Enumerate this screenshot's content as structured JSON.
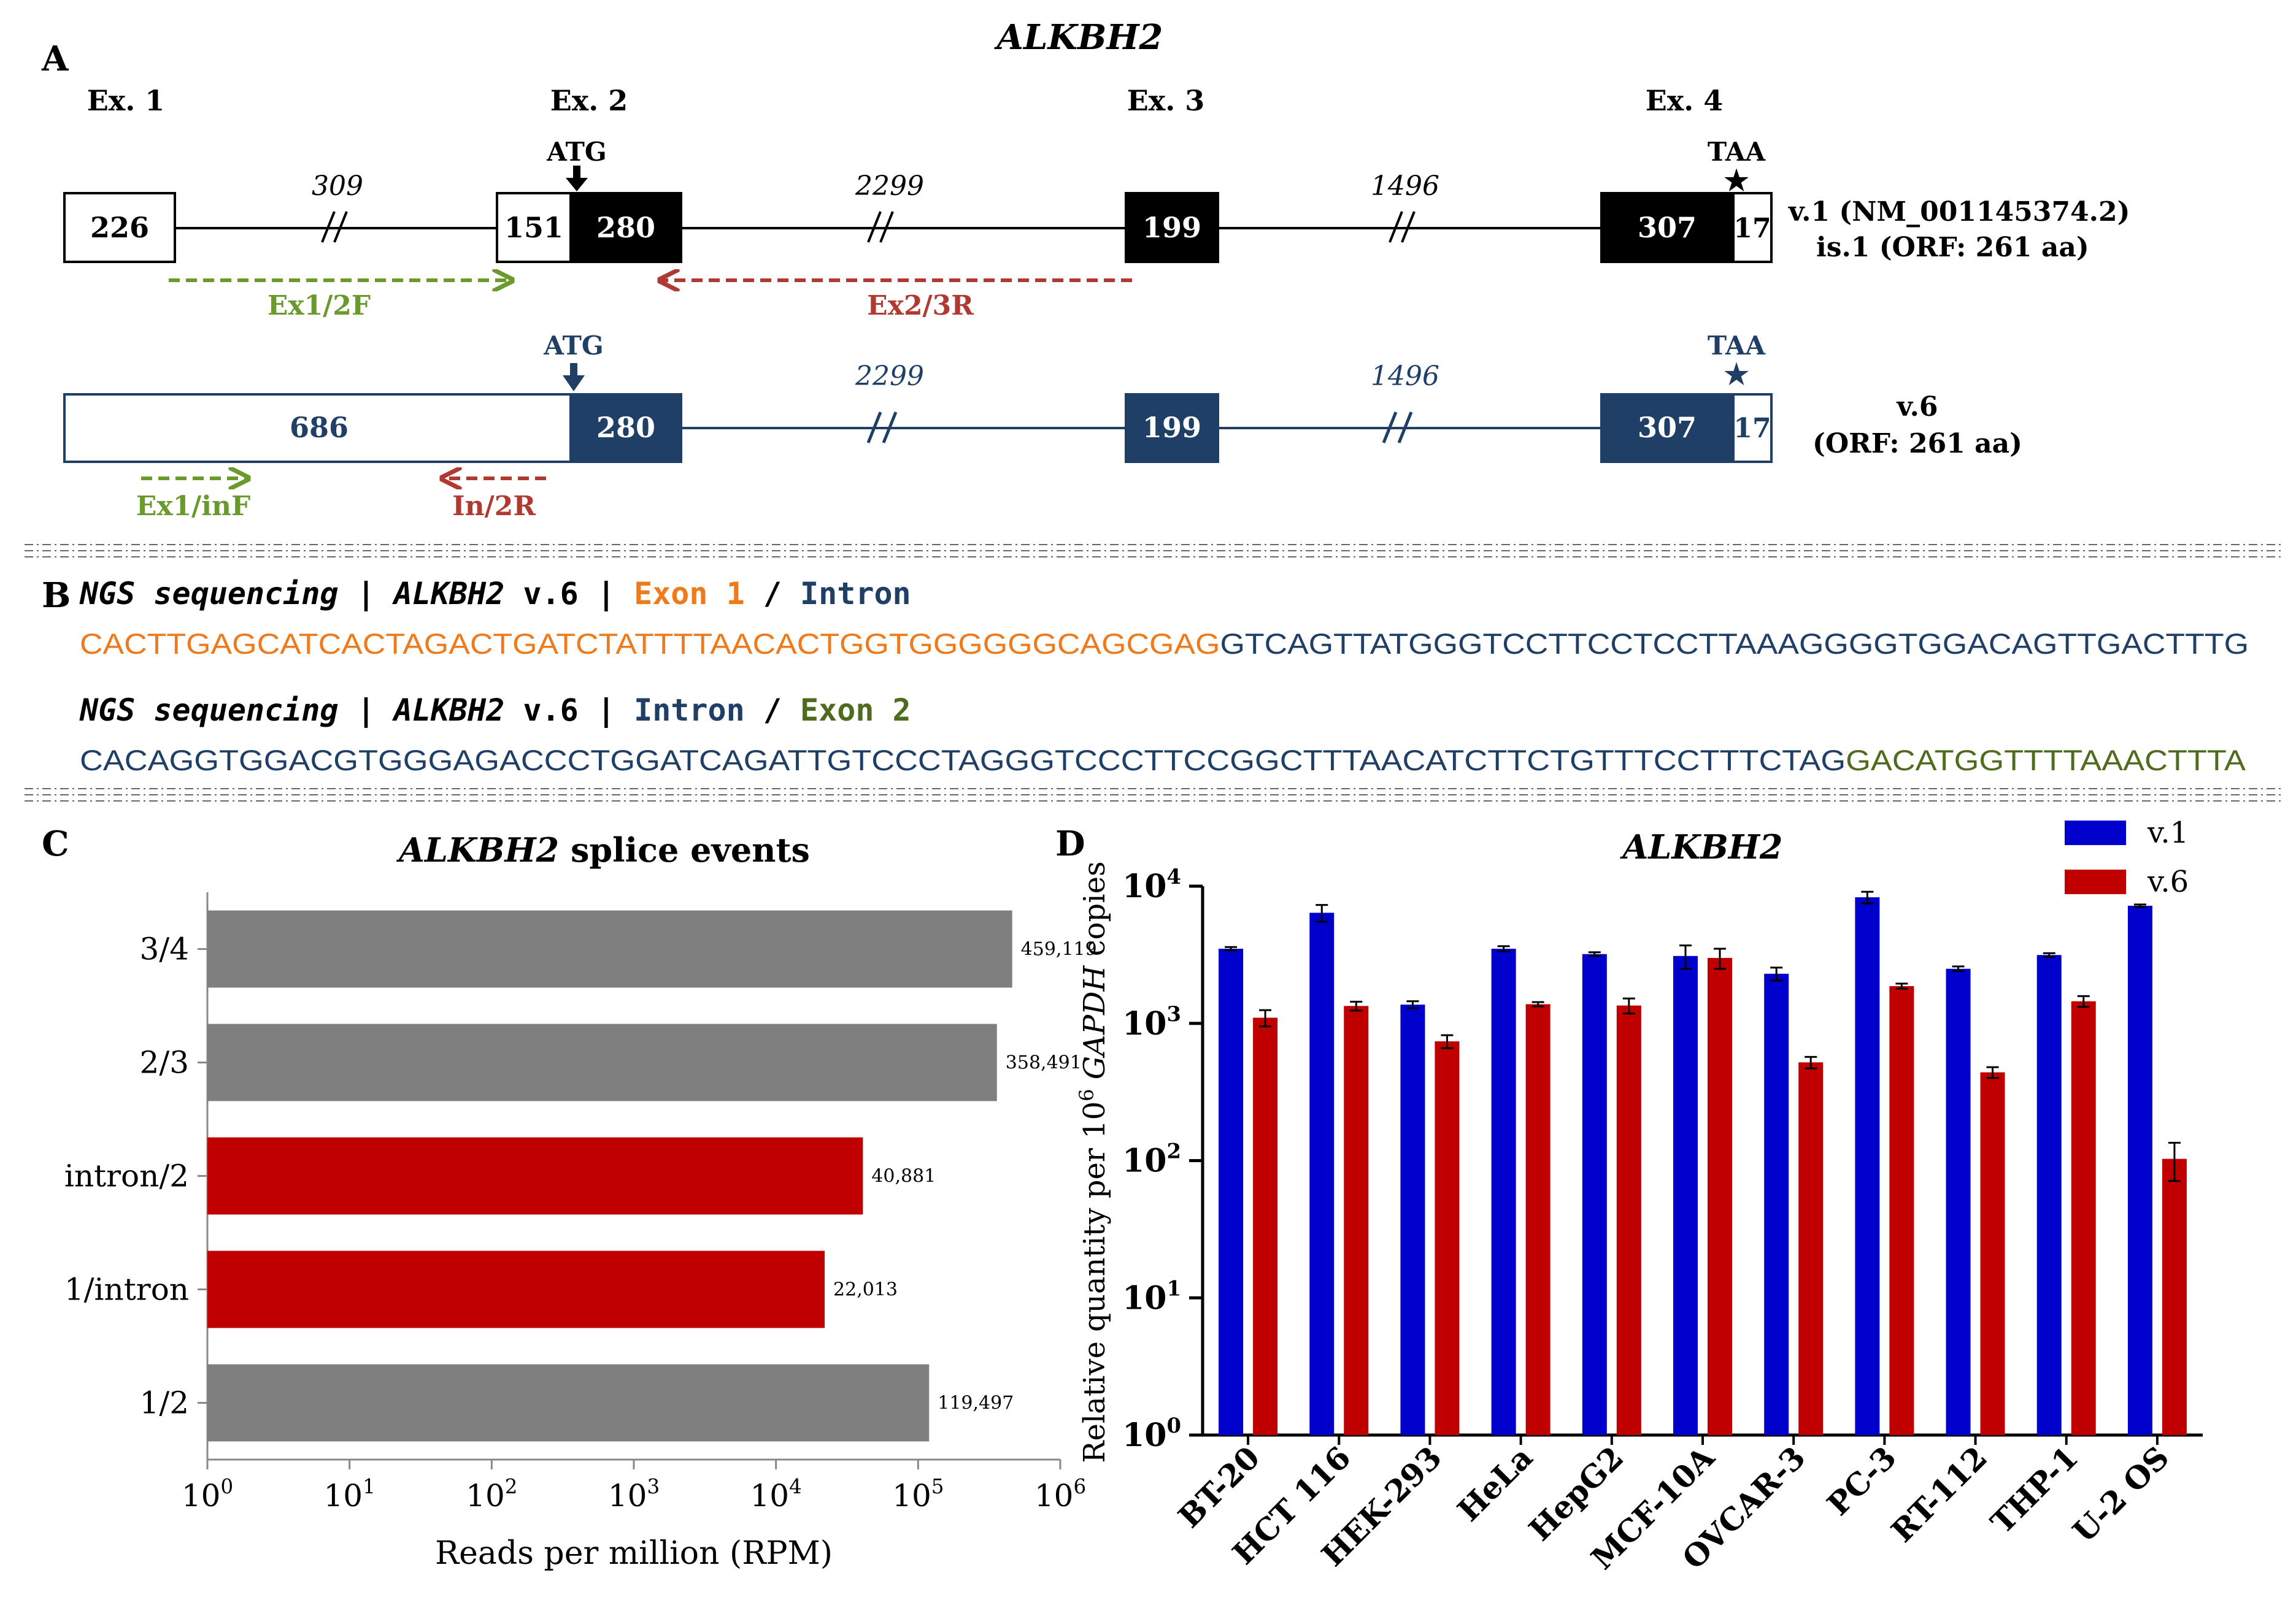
{
  "figure_title": "ALKBH2",
  "panels": {
    "A": {
      "letter": "A",
      "exon_labels": [
        "Ex. 1",
        "Ex. 2",
        "Ex. 3",
        "Ex. 4"
      ],
      "start_codon": "ATG",
      "stop_codon": "TAA",
      "v1": {
        "exon1": "226",
        "exon2_utr": "151",
        "exon2_cds": "280",
        "exon3": "199",
        "exon4_cds": "307",
        "exon4_utr": "17",
        "intron1": "309",
        "intron2": "2299",
        "intron3": "1496",
        "label_line1": "v.1 (NM_001145374.2)",
        "label_line2": "is.1 (ORF: 261 aa)",
        "primer_forward": "Ex1/2F",
        "primer_reverse": "Ex2/3R"
      },
      "v6": {
        "exon1": "686",
        "exon2_cds": "280",
        "exon3": "199",
        "exon4_cds": "307",
        "exon4_utr": "17",
        "intron2": "2299",
        "intron3": "1496",
        "label_line1": "v.6",
        "label_line2": "(ORF: 261 aa)",
        "primer_forward": "Ex1/inF",
        "primer_reverse": "In/2R"
      },
      "colors": {
        "v1": "#000000",
        "v6": "#1f3f66",
        "primer_f": "#6a9a2c",
        "primer_r": "#b03a32"
      }
    },
    "B": {
      "letter": "B",
      "line1": {
        "prefix": "NGS sequencing | ",
        "gene": "ALKBH2",
        "variant": " v.6 | ",
        "part_a": "Exon 1",
        "sep": " / ",
        "part_b": "Intron"
      },
      "seq1_a": "CACTTGAGCATCACTAGACTGATCTATTTTAACACTGGTGGGGGGCAGCGAG",
      "seq1_b": "GTCAGTTATGGGTCCTTCCTCCTTAAAGGGGTGGACAGTTGACTTTG",
      "line2": {
        "prefix": "NGS sequencing | ",
        "gene": "ALKBH2",
        "variant": " v.6 | ",
        "part_a": "Intron",
        "sep": " / ",
        "part_b": "Exon 2"
      },
      "seq2_a": "CACAGGTGGACGTGGGAGACCCTGGATCAGATTGTCCCTAGGGTCCCTTCCGGCTTTAACATCTTCTGTTTCCTTTCTAG",
      "seq2_b": "GACATGGTTTTAAACTTTA",
      "colors": {
        "exon1": "#f07a1a",
        "intron": "#1f3f66",
        "exon2": "#4e6b1e"
      }
    },
    "C": {
      "letter": "C",
      "title_gene": "ALKBH2",
      "title_rest": " splice events"
    },
    "D": {
      "letter": "D"
    }
  },
  "chart_data": [
    {
      "type": "bar",
      "orientation": "horizontal",
      "title": "ALKBH2 splice events",
      "xlabel": "Reads per million (RPM)",
      "xscale": "log",
      "xlim": [
        1,
        1000000
      ],
      "xticks": [
        "10^0",
        "10^1",
        "10^2",
        "10^3",
        "10^4",
        "10^5",
        "10^6"
      ],
      "categories": [
        "3/4",
        "2/3",
        "intron/2",
        "1/intron",
        "1/2"
      ],
      "values": [
        459119,
        358491,
        40881,
        22013,
        119497
      ],
      "value_labels": [
        "459,119",
        "358,491",
        "40,881",
        "22,013",
        "119,497"
      ],
      "colors": [
        "#7f7f7f",
        "#7f7f7f",
        "#c00000",
        "#c00000",
        "#7f7f7f"
      ]
    },
    {
      "type": "bar",
      "title": "ALKBH2",
      "ylabel_pre": "Relative quantity per 10",
      "ylabel_sup": "6",
      "ylabel_gene": "GAPDH",
      "ylabel_post": " copies",
      "yscale": "log",
      "ylim": [
        1,
        10000
      ],
      "yticks": [
        "10^0",
        "10^1",
        "10^2",
        "10^3",
        "10^4"
      ],
      "categories": [
        "BT-20",
        "HCT 116",
        "HEK-293",
        "HeLa",
        "HepG2",
        "MCF-10A",
        "OVCAR-3",
        "PC-3",
        "RT-112",
        "THP-1",
        "U-2 OS"
      ],
      "series": [
        {
          "name": "v.1",
          "color": "#0000cc",
          "values": [
            3500,
            6400,
            1370,
            3500,
            3200,
            3100,
            2300,
            8300,
            2500,
            3150,
            7200
          ],
          "errors": [
            100,
            900,
            80,
            150,
            100,
            600,
            250,
            800,
            100,
            100,
            150
          ]
        },
        {
          "name": "v.6",
          "color": "#c00000",
          "values": [
            1100,
            1340,
            740,
            1380,
            1350,
            3000,
            520,
            1870,
            440,
            1450,
            103
          ],
          "errors": [
            150,
            100,
            80,
            50,
            170,
            500,
            50,
            80,
            40,
            130,
            32
          ]
        }
      ],
      "legend_position": "top-right"
    }
  ]
}
